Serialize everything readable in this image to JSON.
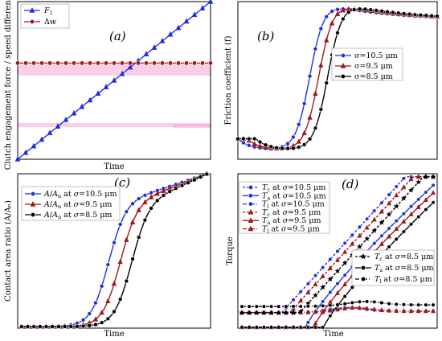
{
  "chart_data": [
    {
      "panel": "(a)",
      "type": "line",
      "title": "",
      "xlabel": "Time",
      "ylabel": "Clutch engagement force / speed difference",
      "xlim": [
        0,
        1
      ],
      "ylim": [
        0,
        1
      ],
      "legend": "top-left",
      "series": [
        {
          "name": "F_1",
          "label": "F₁",
          "color": "#1f2fe0",
          "marker": "triangle",
          "x": [
            0,
            1
          ],
          "y": [
            0,
            1
          ]
        },
        {
          "name": "Δw",
          "label": "Δw",
          "color": "#a01818",
          "marker": "circle",
          "x": [
            0,
            1
          ],
          "y": [
            0.61,
            0.61
          ]
        }
      ]
    },
    {
      "panel": "(b)",
      "type": "line",
      "title": "",
      "xlabel": "",
      "ylabel": "Friction coefficient (f)",
      "xlim": [
        0,
        1
      ],
      "ylim": [
        0,
        1
      ],
      "legend": "middle-right",
      "series": [
        {
          "name": "σ=10.5 μm",
          "label": "σ=10.5 μm",
          "color": "#1f2fe0",
          "marker": "circle",
          "shift": 0.0
        },
        {
          "name": "σ=9.5 μm",
          "label": "σ=9.5 μm",
          "color": "#a01818",
          "marker": "triangle",
          "shift": 0.045
        },
        {
          "name": "σ=8.5 μm",
          "label": "σ=8.5 μm",
          "color": "#000000",
          "marker": "circle",
          "shift": 0.09
        }
      ],
      "curve": {
        "start": 0.13,
        "dip": 0.06,
        "peak": 0.98,
        "end": 0.89
      }
    },
    {
      "panel": "(c)",
      "type": "line",
      "title": "",
      "xlabel": "Time",
      "ylabel": "Contact area ratio (A/Aₙ)",
      "xlim": [
        0,
        1
      ],
      "ylim": [
        0,
        1
      ],
      "legend": "top-left",
      "series": [
        {
          "name": "A/An at σ=10.5 μm",
          "label": "A/Aₙ at σ=10.5 μm",
          "color": "#1f2fe0",
          "marker": "circle",
          "mid": 0.47
        },
        {
          "name": "A/An at σ=9.5 μm",
          "label": "A/Aₙ at σ=9.5 μm",
          "color": "#a01818",
          "marker": "triangle",
          "mid": 0.53
        },
        {
          "name": "A/An at σ=8.5 μm",
          "label": "A/Aₙ at σ=8.5 μm",
          "color": "#000000",
          "marker": "circle",
          "mid": 0.59
        }
      ]
    },
    {
      "panel": "(d)",
      "type": "line",
      "title": "",
      "xlabel": "Time",
      "ylabel": "Torque",
      "xlim": [
        0,
        1
      ],
      "ylim": [
        0,
        1
      ],
      "legend": "top-left / bottom-right",
      "series": [
        {
          "name": "Tc at σ=10.5 μm",
          "sym": "T",
          "sub": "c",
          "sigma": "10.5",
          "color": "#1f2fe0",
          "marker": "circle",
          "dash": "3,2"
        },
        {
          "name": "Ta at σ=10.5 μm",
          "sym": "T",
          "sub": "a",
          "sigma": "10.5",
          "color": "#1f2fe0",
          "marker": "circle",
          "dash": ""
        },
        {
          "name": "Tl at σ=10.5 μm",
          "sym": "T",
          "sub": "l",
          "sigma": "10.5",
          "color": "#1f2fe0",
          "marker": "circle",
          "dash": "5,2,1,2"
        },
        {
          "name": "Tc at σ=9.5 μm",
          "sym": "T",
          "sub": "c",
          "sigma": "9.5",
          "color": "#a01818",
          "marker": "triangle",
          "dash": "3,2"
        },
        {
          "name": "Ta at σ=9.5 μm",
          "sym": "T",
          "sub": "a",
          "sigma": "9.5",
          "color": "#a01818",
          "marker": "triangle",
          "dash": ""
        },
        {
          "name": "Tl at σ=9.5 μm",
          "sym": "T",
          "sub": "l",
          "sigma": "9.5",
          "color": "#a01818",
          "marker": "triangle",
          "dash": "5,2,1,2"
        },
        {
          "name": "Tc at σ=8.5 μm",
          "sym": "T",
          "sub": "c",
          "sigma": "8.5",
          "color": "#000000",
          "marker": "star",
          "dash": "3,2"
        },
        {
          "name": "Ta at σ=8.5 μm",
          "sym": "T",
          "sub": "a",
          "sigma": "8.5",
          "color": "#000000",
          "marker": "circle",
          "dash": ""
        },
        {
          "name": "Tl at σ=8.5 μm",
          "sym": "T",
          "sub": "l",
          "sigma": "8.5",
          "color": "#000000",
          "marker": "circle",
          "dash": "5,2,1,2"
        }
      ]
    }
  ]
}
